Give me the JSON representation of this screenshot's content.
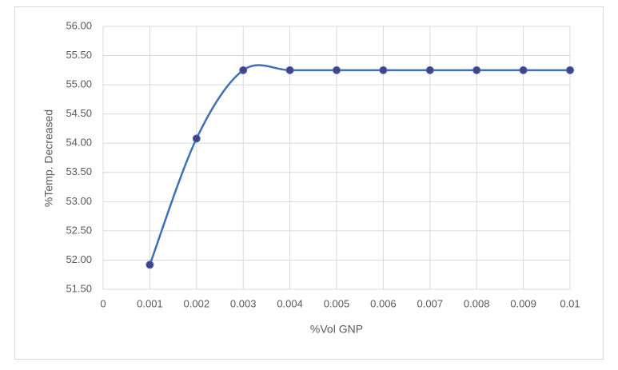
{
  "chart_data": {
    "type": "line",
    "x_label": "%Vol GNP",
    "y_label": "%Temp. Decreased",
    "x": [
      0.001,
      0.002,
      0.003,
      0.004,
      0.005,
      0.006,
      0.007,
      0.008,
      0.009,
      0.01
    ],
    "series": [
      {
        "color": "#3e70b6",
        "marker_color": "#4b3f86",
        "values": [
          51.92,
          54.08,
          55.25,
          55.25,
          55.25,
          55.25,
          55.25,
          55.25,
          55.25,
          55.25
        ]
      }
    ],
    "smooth": true,
    "xlim": [
      0,
      0.01
    ],
    "xticks": [
      0,
      0.001,
      0.002,
      0.003,
      0.004,
      0.005,
      0.006,
      0.007,
      0.008,
      0.009,
      0.01
    ],
    "ylim": [
      51.5,
      56
    ],
    "yticks": [
      {
        "value": 51.5,
        "label": "51.50"
      },
      {
        "value": 52,
        "label": "52.00"
      },
      {
        "value": 52.5,
        "label": "52.50"
      },
      {
        "value": 53,
        "label": "53.00"
      },
      {
        "value": 53.5,
        "label": "53.50"
      },
      {
        "value": 54,
        "label": "54.00"
      },
      {
        "value": 54.5,
        "label": "54.50"
      },
      {
        "value": 55,
        "label": "55.00"
      },
      {
        "value": 55.5,
        "label": "55.50"
      },
      {
        "value": 56,
        "label": "56.00"
      }
    ],
    "grid": true
  }
}
